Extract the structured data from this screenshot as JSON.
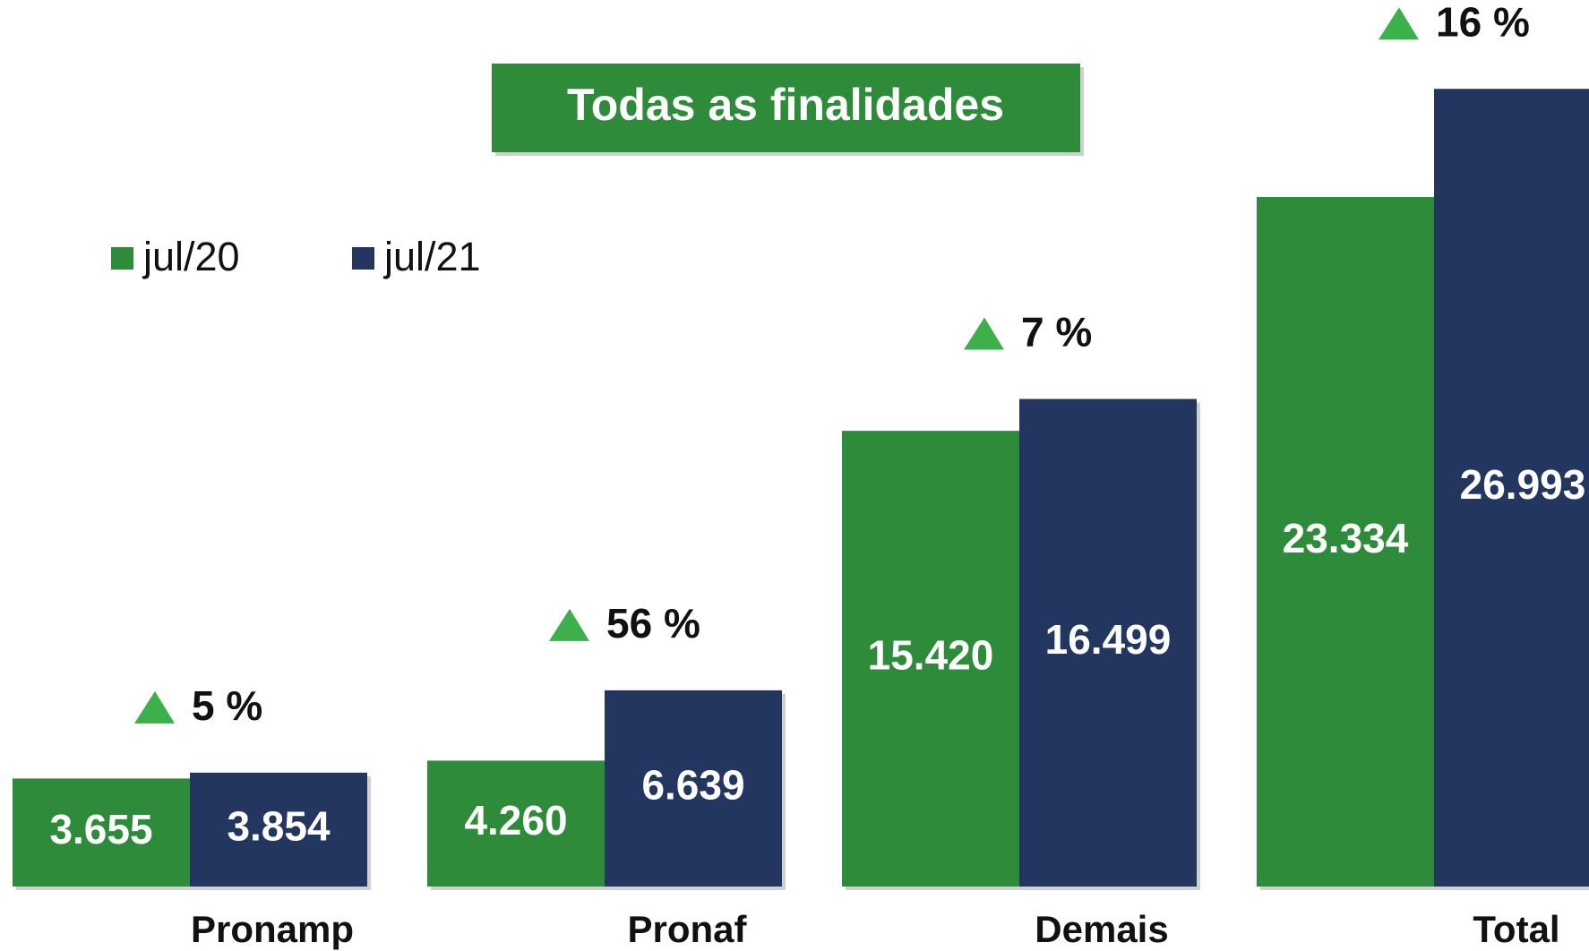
{
  "chart_data": {
    "type": "bar",
    "title": "Todas as finalidades",
    "categories": [
      "Pronamp",
      "Pronaf",
      "Demais",
      "Total"
    ],
    "series": [
      {
        "name": "jul/20",
        "color": "#2e8b3a",
        "values": [
          3655,
          4260,
          15420,
          23334
        ],
        "value_labels": [
          "3.655",
          "4.260",
          "15.420",
          "23.334"
        ]
      },
      {
        "name": "jul/21",
        "color": "#22365f",
        "values": [
          3854,
          6639,
          16499,
          26993
        ],
        "value_labels": [
          "3.854",
          "6.639",
          "16.499",
          "26.993"
        ]
      }
    ],
    "annotations": [
      "5 %",
      "56 %",
      "7 %",
      "16 %"
    ],
    "annotation_color": "#3cb04a",
    "ylim": [
      0,
      30000
    ]
  }
}
